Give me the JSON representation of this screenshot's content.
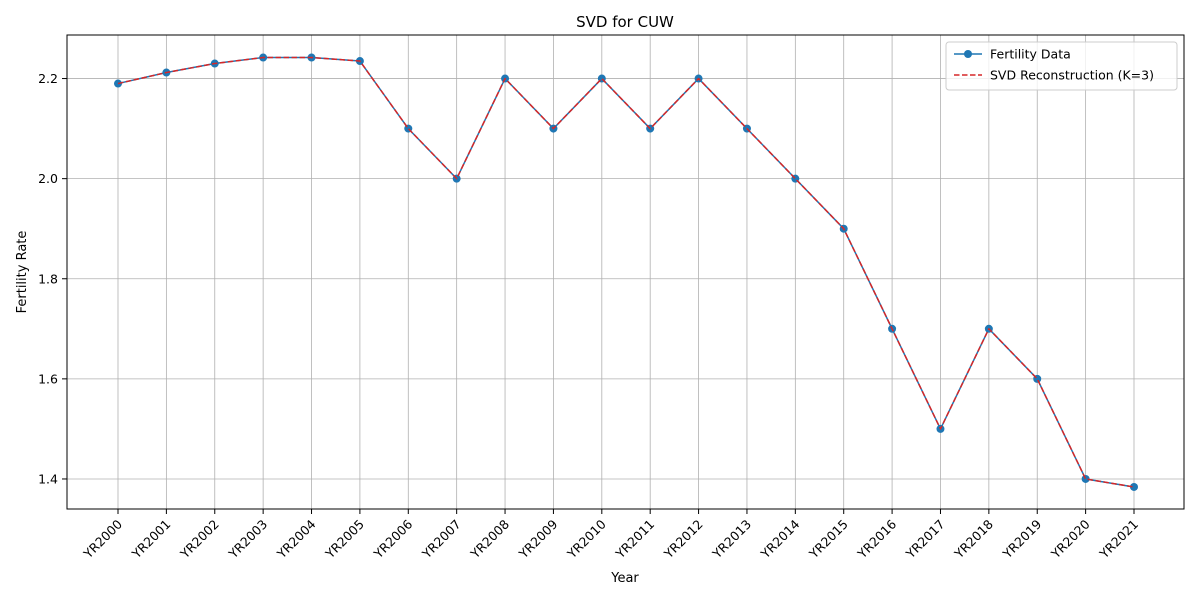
{
  "chart_data": {
    "type": "line",
    "title": "SVD for CUW",
    "xlabel": "Year",
    "ylabel": "Fertility Rate",
    "categories": [
      "YR2000",
      "YR2001",
      "YR2002",
      "YR2003",
      "YR2004",
      "YR2005",
      "YR2006",
      "YR2007",
      "YR2008",
      "YR2009",
      "YR2010",
      "YR2011",
      "YR2012",
      "YR2013",
      "YR2014",
      "YR2015",
      "YR2016",
      "YR2017",
      "YR2018",
      "YR2019",
      "YR2020",
      "YR2021"
    ],
    "ylim": [
      1.34,
      2.287
    ],
    "yticks": [
      1.4,
      1.6,
      1.8,
      2.0,
      2.2
    ],
    "ytick_labels": [
      "1.4",
      "1.6",
      "1.8",
      "2.0",
      "2.2"
    ],
    "grid": true,
    "legend_position": "top-right",
    "series": [
      {
        "name": "Fertility Data",
        "color": "#1f77b4",
        "style": "solid",
        "marker": "circle",
        "values": [
          2.19,
          2.212,
          2.23,
          2.242,
          2.242,
          2.235,
          2.1,
          2.0,
          2.2,
          2.1,
          2.2,
          2.1,
          2.2,
          2.1,
          2.0,
          1.9,
          1.7,
          1.5,
          1.7,
          1.6,
          1.4,
          1.384
        ]
      },
      {
        "name": "SVD Reconstruction (K=3)",
        "color": "#d62728",
        "style": "dashed",
        "marker": "none",
        "values": [
          2.19,
          2.212,
          2.23,
          2.242,
          2.242,
          2.235,
          2.1,
          2.0,
          2.2,
          2.1,
          2.2,
          2.1,
          2.2,
          2.1,
          2.0,
          1.9,
          1.7,
          1.5,
          1.7,
          1.6,
          1.4,
          1.384
        ]
      }
    ]
  }
}
